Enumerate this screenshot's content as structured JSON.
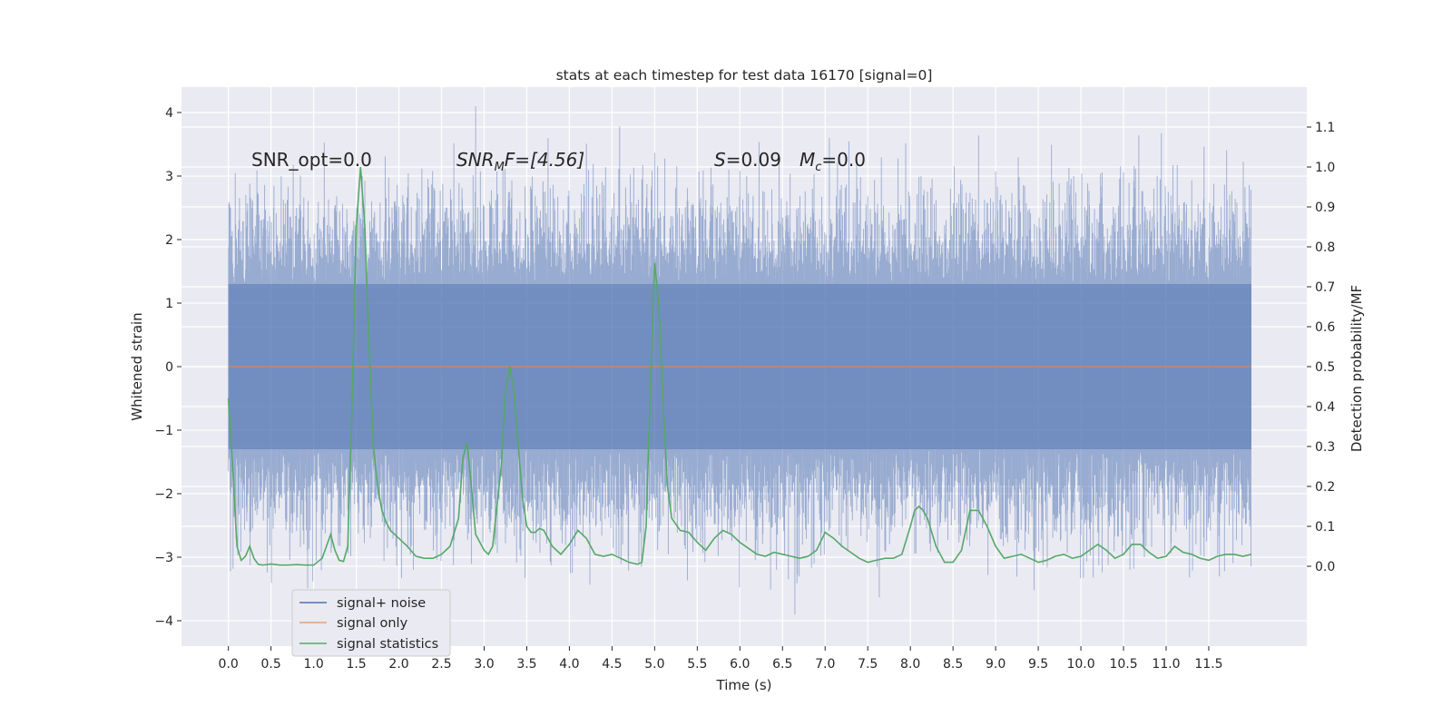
{
  "chart_data": {
    "type": "line",
    "title": "stats at each timestep for test data 16170 [signal=0]",
    "xlabel": "Time (s)",
    "ylabel": "Whitened strain",
    "y2label": "Detection probability/MF",
    "xlim": [
      -0.55,
      12.65
    ],
    "ylim": [
      -4.4,
      4.4
    ],
    "y2lim": [
      -0.2,
      1.2
    ],
    "xticks": [
      0.0,
      0.5,
      1.0,
      1.5,
      2.0,
      2.5,
      3.0,
      3.5,
      4.0,
      4.5,
      5.0,
      5.5,
      6.0,
      6.5,
      7.0,
      7.5,
      8.0,
      8.5,
      9.0,
      9.5,
      10.0,
      10.5,
      11.0,
      11.5
    ],
    "xtick_labels": [
      "0.0",
      "0.5",
      "1.0",
      "1.5",
      "2.0",
      "2.5",
      "3.0",
      "3.5",
      "4.0",
      "4.5",
      "5.0",
      "5.5",
      "6.0",
      "6.5",
      "7.0",
      "7.5",
      "8.0",
      "8.5",
      "9.0",
      "9.5",
      "10.0",
      "10.5",
      "11.0",
      "11.5"
    ],
    "yticks": [
      4,
      3,
      2,
      1,
      0,
      -1,
      -2,
      -3,
      -4
    ],
    "ytick_labels": [
      "4",
      "3",
      "2",
      "1",
      "0",
      "−1",
      "−2",
      "−3",
      "−4"
    ],
    "y2ticks": [
      1.1,
      1.0,
      0.9,
      0.8,
      0.7,
      0.6,
      0.5,
      0.4,
      0.3,
      0.2,
      0.1,
      0.0
    ],
    "y2tick_labels": [
      "1.1",
      "1.0",
      "0.9",
      "0.8",
      "0.7",
      "0.6",
      "0.5",
      "0.4",
      "0.3",
      "0.2",
      "0.1",
      "0.0"
    ],
    "grid": true,
    "legend_position": "lower-left",
    "annotations": [
      "SNR_opt=0.0",
      "SNR",
      "M",
      "F=[4.56]",
      "S",
      "=0.09",
      "M",
      "c",
      "=0.0"
    ],
    "series": [
      {
        "name": "signal+ noise",
        "color": "#4c72b0",
        "note": "dense noise trace from 0.0 s to 12.0 s, bulk between about -1.8 and 1.8, spikes up to about 4.1 near 4.8 s and down to about -3.9 near 10.8 s",
        "t_start": 0.0,
        "t_end": 12.0,
        "approx_range": [
          -3.9,
          4.1
        ]
      },
      {
        "name": "signal only",
        "color": "#dd8452",
        "x": [
          0.0,
          12.0
        ],
        "y": [
          0.0,
          0.0
        ]
      },
      {
        "name": "signal statistics",
        "color": "#55a868",
        "axis": "right",
        "x": [
          0.0,
          0.05,
          0.1,
          0.15,
          0.2,
          0.25,
          0.3,
          0.35,
          0.4,
          0.45,
          0.5,
          0.6,
          0.7,
          0.8,
          0.9,
          1.0,
          1.1,
          1.15,
          1.2,
          1.25,
          1.3,
          1.35,
          1.4,
          1.45,
          1.5,
          1.55,
          1.6,
          1.65,
          1.7,
          1.75,
          1.8,
          1.85,
          1.9,
          2.0,
          2.1,
          2.2,
          2.3,
          2.4,
          2.5,
          2.6,
          2.7,
          2.75,
          2.8,
          2.85,
          2.9,
          3.0,
          3.05,
          3.1,
          3.2,
          3.25,
          3.3,
          3.35,
          3.4,
          3.45,
          3.5,
          3.55,
          3.6,
          3.65,
          3.7,
          3.8,
          3.9,
          4.0,
          4.1,
          4.2,
          4.3,
          4.4,
          4.5,
          4.6,
          4.7,
          4.8,
          4.85,
          4.9,
          4.95,
          5.0,
          5.05,
          5.1,
          5.15,
          5.2,
          5.3,
          5.4,
          5.5,
          5.6,
          5.7,
          5.8,
          5.9,
          6.0,
          6.1,
          6.2,
          6.3,
          6.4,
          6.5,
          6.6,
          6.7,
          6.8,
          6.9,
          7.0,
          7.1,
          7.2,
          7.3,
          7.4,
          7.5,
          7.6,
          7.7,
          7.8,
          7.9,
          8.0,
          8.05,
          8.1,
          8.15,
          8.2,
          8.3,
          8.4,
          8.5,
          8.6,
          8.7,
          8.75,
          8.8,
          8.85,
          8.9,
          9.0,
          9.1,
          9.2,
          9.3,
          9.4,
          9.5,
          9.6,
          9.7,
          9.8,
          9.9,
          10.0,
          10.1,
          10.2,
          10.3,
          10.4,
          10.5,
          10.6,
          10.7,
          10.8,
          10.9,
          11.0,
          11.1,
          11.2,
          11.3,
          11.4,
          11.5,
          11.6,
          11.7,
          11.8,
          11.9,
          12.0
        ],
        "y": [
          0.42,
          0.25,
          0.05,
          0.015,
          0.025,
          0.05,
          0.02,
          0.005,
          0.003,
          0.004,
          0.006,
          0.003,
          0.003,
          0.004,
          0.003,
          0.003,
          0.02,
          0.05,
          0.08,
          0.04,
          0.015,
          0.012,
          0.05,
          0.4,
          0.85,
          1.0,
          0.85,
          0.55,
          0.3,
          0.2,
          0.14,
          0.11,
          0.09,
          0.07,
          0.05,
          0.025,
          0.02,
          0.02,
          0.03,
          0.05,
          0.12,
          0.27,
          0.31,
          0.2,
          0.08,
          0.04,
          0.03,
          0.05,
          0.25,
          0.44,
          0.5,
          0.44,
          0.3,
          0.17,
          0.1,
          0.085,
          0.085,
          0.095,
          0.09,
          0.05,
          0.03,
          0.055,
          0.09,
          0.07,
          0.03,
          0.025,
          0.03,
          0.02,
          0.01,
          0.005,
          0.01,
          0.1,
          0.45,
          0.76,
          0.65,
          0.4,
          0.2,
          0.12,
          0.09,
          0.085,
          0.06,
          0.04,
          0.07,
          0.09,
          0.08,
          0.06,
          0.045,
          0.03,
          0.025,
          0.035,
          0.03,
          0.025,
          0.02,
          0.025,
          0.04,
          0.085,
          0.07,
          0.05,
          0.035,
          0.02,
          0.01,
          0.015,
          0.02,
          0.02,
          0.03,
          0.1,
          0.14,
          0.15,
          0.14,
          0.12,
          0.05,
          0.01,
          0.01,
          0.04,
          0.14,
          0.14,
          0.14,
          0.12,
          0.1,
          0.05,
          0.02,
          0.025,
          0.03,
          0.02,
          0.01,
          0.015,
          0.025,
          0.03,
          0.02,
          0.025,
          0.04,
          0.055,
          0.04,
          0.02,
          0.03,
          0.055,
          0.055,
          0.035,
          0.02,
          0.025,
          0.05,
          0.035,
          0.03,
          0.02,
          0.015,
          0.025,
          0.03,
          0.03,
          0.025,
          0.03
        ]
      }
    ]
  }
}
